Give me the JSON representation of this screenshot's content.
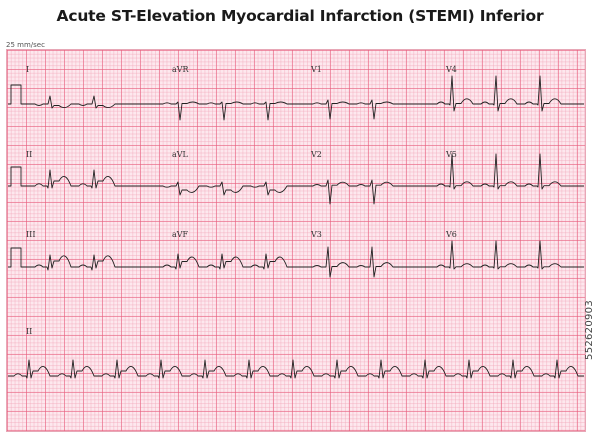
{
  "title": "Acute ST-Elevation Myocardial Infarction (STEMI) Inferior",
  "paper_speed": "25 mm/sec",
  "stock_id": "552620903",
  "colors": {
    "paper": "#fde8ee",
    "major_grid": "#e85c7c",
    "minor_grid": "#f2a8ba",
    "trace": "#222222"
  },
  "leads": {
    "row1": [
      "I",
      "aVR",
      "V1",
      "V4"
    ],
    "row2": [
      "II",
      "aVL",
      "V2",
      "V5"
    ],
    "row3": [
      "III",
      "aVF",
      "V3",
      "V6"
    ],
    "rhythm": "II"
  }
}
